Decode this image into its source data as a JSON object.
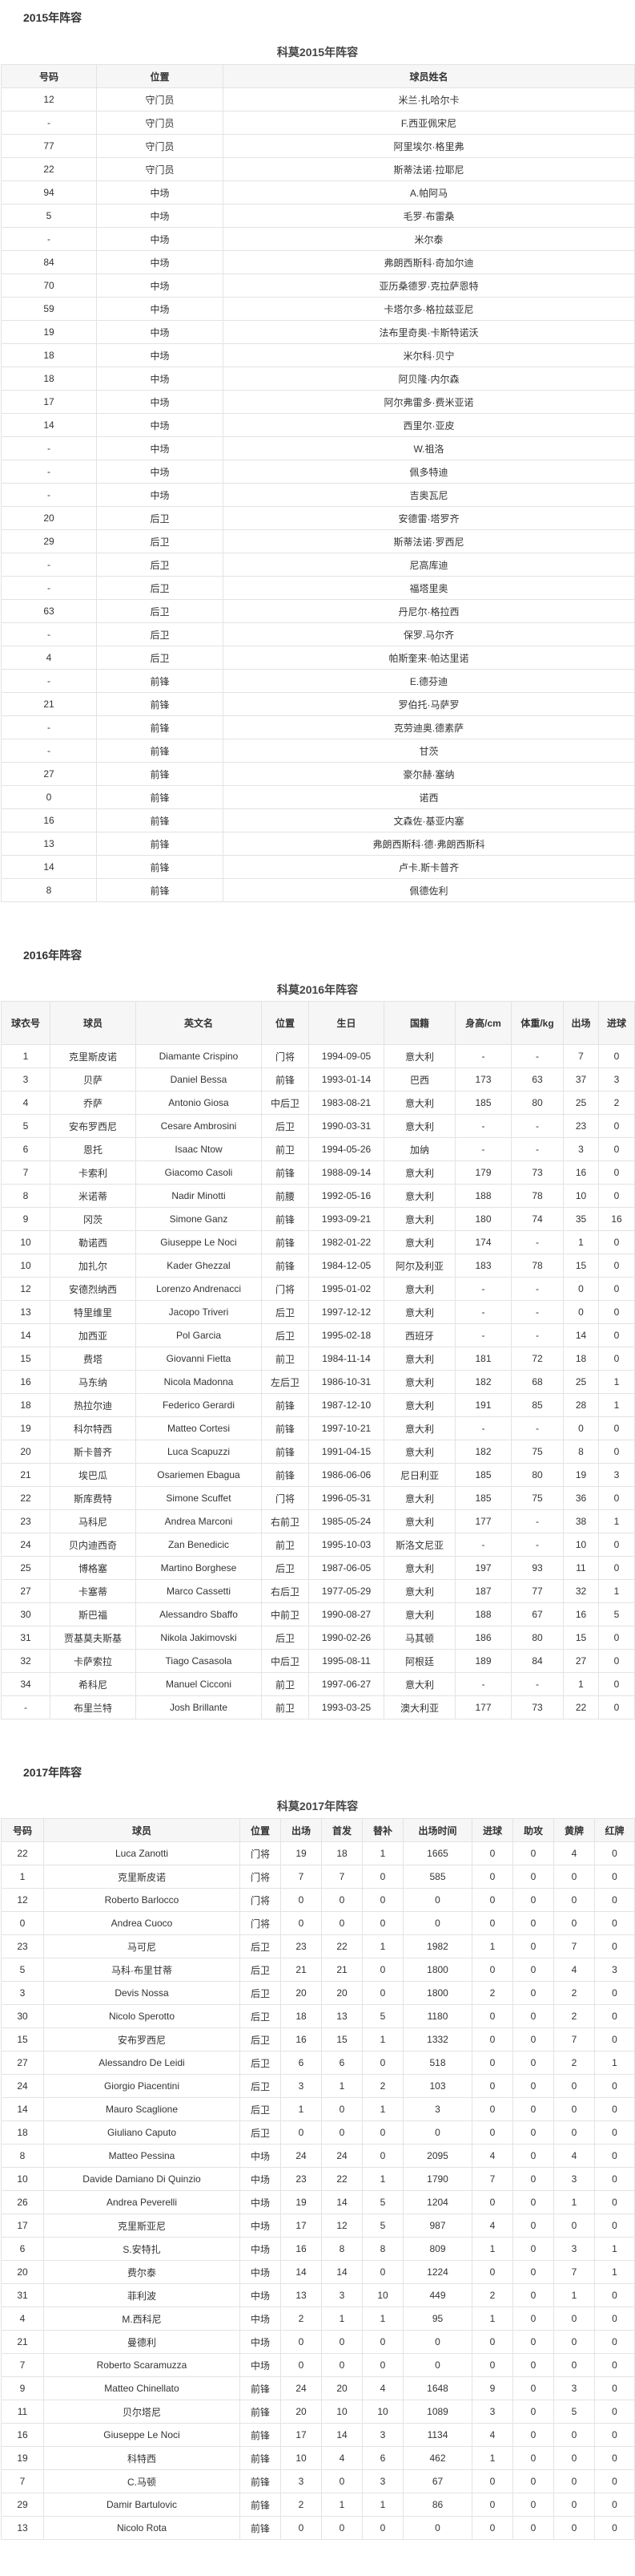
{
  "s2015": {
    "heading": "2015年阵容",
    "caption": "科莫2015年阵容",
    "columns": [
      "号码",
      "位置",
      "球员姓名"
    ],
    "rows": [
      [
        "12",
        "守门员",
        "米兰·扎哈尔卡"
      ],
      [
        "-",
        "守门员",
        "F.西亚佩宋尼"
      ],
      [
        "77",
        "守门员",
        "阿里埃尔·格里弗"
      ],
      [
        "22",
        "守门员",
        "斯蒂法诺·拉耶尼"
      ],
      [
        "94",
        "中场",
        "A.帕阿马"
      ],
      [
        "5",
        "中场",
        "毛罗·布雷桑"
      ],
      [
        "-",
        "中场",
        "米尔泰"
      ],
      [
        "84",
        "中场",
        "弗朗西斯科·奇加尔迪"
      ],
      [
        "70",
        "中场",
        "亚历桑德罗·克拉萨恩特"
      ],
      [
        "59",
        "中场",
        "卡塔尔多·格拉兹亚尼"
      ],
      [
        "19",
        "中场",
        "法布里奇奥·卡斯特诺沃"
      ],
      [
        "18",
        "中场",
        "米尔科·贝宁"
      ],
      [
        "18",
        "中场",
        "阿贝隆·内尔森"
      ],
      [
        "17",
        "中场",
        "阿尔弗雷多·费米亚诺"
      ],
      [
        "14",
        "中场",
        "西里尔·亚皮"
      ],
      [
        "-",
        "中场",
        "W.祖洛"
      ],
      [
        "-",
        "中场",
        "佩多特迪"
      ],
      [
        "-",
        "中场",
        "吉奥瓦尼"
      ],
      [
        "20",
        "后卫",
        "安德雷·塔罗齐"
      ],
      [
        "29",
        "后卫",
        "斯蒂法诺·罗西尼"
      ],
      [
        "-",
        "后卫",
        "尼高库迪"
      ],
      [
        "-",
        "后卫",
        "福塔里奥"
      ],
      [
        "63",
        "后卫",
        "丹尼尔·格拉西"
      ],
      [
        "-",
        "后卫",
        "保罗.马尔齐"
      ],
      [
        "4",
        "后卫",
        "帕斯奎来·帕达里诺"
      ],
      [
        "-",
        "前锋",
        "E.德芬迪"
      ],
      [
        "21",
        "前锋",
        "罗伯托·马萨罗"
      ],
      [
        "-",
        "前锋",
        "克劳迪奥.德素萨"
      ],
      [
        "-",
        "前锋",
        "甘茨"
      ],
      [
        "27",
        "前锋",
        "豪尔赫·塞纳"
      ],
      [
        "0",
        "前锋",
        "诺西"
      ],
      [
        "16",
        "前锋",
        "文森佐·基亚内塞"
      ],
      [
        "13",
        "前锋",
        "弗朗西斯科·德·弗朗西斯科"
      ],
      [
        "14",
        "前锋",
        "卢卡.斯卡普齐"
      ],
      [
        "8",
        "前锋",
        "佩德佐利"
      ]
    ]
  },
  "s2016": {
    "heading": "2016年阵容",
    "caption": "科莫2016年阵容",
    "columns": [
      "球衣号",
      "球员",
      "英文名",
      "位置",
      "生日",
      "国籍",
      "身高/cm",
      "体重/kg",
      "出场",
      "进球"
    ],
    "rows": [
      [
        "1",
        "克里斯皮诺",
        "Diamante Crispino",
        "门将",
        "1994-09-05",
        "意大利",
        "-",
        "-",
        "7",
        "0"
      ],
      [
        "3",
        "贝萨",
        "Daniel Bessa",
        "前锋",
        "1993-01-14",
        "巴西",
        "173",
        "63",
        "37",
        "3"
      ],
      [
        "4",
        "乔萨",
        "Antonio Giosa",
        "中后卫",
        "1983-08-21",
        "意大利",
        "185",
        "80",
        "25",
        "2"
      ],
      [
        "5",
        "安布罗西尼",
        "Cesare Ambrosini",
        "后卫",
        "1990-03-31",
        "意大利",
        "-",
        "-",
        "23",
        "0"
      ],
      [
        "6",
        "恩托",
        "Isaac Ntow",
        "前卫",
        "1994-05-26",
        "加纳",
        "-",
        "-",
        "3",
        "0"
      ],
      [
        "7",
        "卡索利",
        "Giacomo Casoli",
        "前锋",
        "1988-09-14",
        "意大利",
        "179",
        "73",
        "16",
        "0"
      ],
      [
        "8",
        "米诺蒂",
        "Nadir Minotti",
        "前腰",
        "1992-05-16",
        "意大利",
        "188",
        "78",
        "10",
        "0"
      ],
      [
        "9",
        "冈茨",
        "Simone Ganz",
        "前锋",
        "1993-09-21",
        "意大利",
        "180",
        "74",
        "35",
        "16"
      ],
      [
        "10",
        "勒诺西",
        "Giuseppe Le Noci",
        "前锋",
        "1982-01-22",
        "意大利",
        "174",
        "-",
        "1",
        "0"
      ],
      [
        "10",
        "加扎尔",
        "Kader Ghezzal",
        "前锋",
        "1984-12-05",
        "阿尔及利亚",
        "183",
        "78",
        "15",
        "0"
      ],
      [
        "12",
        "安德烈纳西",
        "Lorenzo Andrenacci",
        "门将",
        "1995-01-02",
        "意大利",
        "-",
        "-",
        "0",
        "0"
      ],
      [
        "13",
        "特里维里",
        "Jacopo Triveri",
        "后卫",
        "1997-12-12",
        "意大利",
        "-",
        "-",
        "0",
        "0"
      ],
      [
        "14",
        "加西亚",
        "Pol Garcia",
        "后卫",
        "1995-02-18",
        "西班牙",
        "-",
        "-",
        "14",
        "0"
      ],
      [
        "15",
        "费塔",
        "Giovanni Fietta",
        "前卫",
        "1984-11-14",
        "意大利",
        "181",
        "72",
        "18",
        "0"
      ],
      [
        "16",
        "马东纳",
        "Nicola Madonna",
        "左后卫",
        "1986-10-31",
        "意大利",
        "182",
        "68",
        "25",
        "1"
      ],
      [
        "18",
        "热拉尔迪",
        "Federico Gerardi",
        "前锋",
        "1987-12-10",
        "意大利",
        "191",
        "85",
        "28",
        "1"
      ],
      [
        "19",
        "科尔特西",
        "Matteo Cortesi",
        "前锋",
        "1997-10-21",
        "意大利",
        "-",
        "-",
        "0",
        "0"
      ],
      [
        "20",
        "斯卡普齐",
        "Luca Scapuzzi",
        "前锋",
        "1991-04-15",
        "意大利",
        "182",
        "75",
        "8",
        "0"
      ],
      [
        "21",
        "埃巴瓜",
        "Osariemen Ebagua",
        "前锋",
        "1986-06-06",
        "尼日利亚",
        "185",
        "80",
        "19",
        "3"
      ],
      [
        "22",
        "斯库费特",
        "Simone Scuffet",
        "门将",
        "1996-05-31",
        "意大利",
        "185",
        "75",
        "36",
        "0"
      ],
      [
        "23",
        "马科尼",
        "Andrea Marconi",
        "右前卫",
        "1985-05-24",
        "意大利",
        "177",
        "-",
        "38",
        "1"
      ],
      [
        "24",
        "贝内迪西奇",
        "Zan Benedicic",
        "前卫",
        "1995-10-03",
        "斯洛文尼亚",
        "-",
        "-",
        "10",
        "0"
      ],
      [
        "25",
        "博格塞",
        "Martino Borghese",
        "后卫",
        "1987-06-05",
        "意大利",
        "197",
        "93",
        "11",
        "0"
      ],
      [
        "27",
        "卡塞蒂",
        "Marco Cassetti",
        "右后卫",
        "1977-05-29",
        "意大利",
        "187",
        "77",
        "32",
        "1"
      ],
      [
        "30",
        "斯巴福",
        "Alessandro Sbaffo",
        "中前卫",
        "1990-08-27",
        "意大利",
        "188",
        "67",
        "16",
        "5"
      ],
      [
        "31",
        "贾基莫夫斯基",
        "Nikola Jakimovski",
        "后卫",
        "1990-02-26",
        "马其顿",
        "186",
        "80",
        "15",
        "0"
      ],
      [
        "32",
        "卡萨索拉",
        "Tiago Casasola",
        "中后卫",
        "1995-08-11",
        "阿根廷",
        "189",
        "84",
        "27",
        "0"
      ],
      [
        "34",
        "希科尼",
        "Manuel Cicconi",
        "前卫",
        "1997-06-27",
        "意大利",
        "-",
        "-",
        "1",
        "0"
      ],
      [
        "-",
        "布里兰特",
        "Josh Brillante",
        "前卫",
        "1993-03-25",
        "澳大利亚",
        "177",
        "73",
        "22",
        "0"
      ]
    ]
  },
  "s2017": {
    "heading": "2017年阵容",
    "caption": "科莫2017年阵容",
    "columns": [
      "号码",
      "球员",
      "位置",
      "出场",
      "首发",
      "替补",
      "出场时间",
      "进球",
      "助攻",
      "黄牌",
      "红牌"
    ],
    "rows": [
      [
        "22",
        "Luca Zanotti",
        "门将",
        "19",
        "18",
        "1",
        "1665",
        "0",
        "0",
        "4",
        "0"
      ],
      [
        "1",
        "克里斯皮诺",
        "门将",
        "7",
        "7",
        "0",
        "585",
        "0",
        "0",
        "0",
        "0"
      ],
      [
        "12",
        "Roberto Barlocco",
        "门将",
        "0",
        "0",
        "0",
        "0",
        "0",
        "0",
        "0",
        "0"
      ],
      [
        "0",
        "Andrea Cuoco",
        "门将",
        "0",
        "0",
        "0",
        "0",
        "0",
        "0",
        "0",
        "0"
      ],
      [
        "23",
        "马可尼",
        "后卫",
        "23",
        "22",
        "1",
        "1982",
        "1",
        "0",
        "7",
        "0"
      ],
      [
        "5",
        "马科·布里甘蒂",
        "后卫",
        "21",
        "21",
        "0",
        "1800",
        "0",
        "0",
        "4",
        "3"
      ],
      [
        "3",
        "Devis Nossa",
        "后卫",
        "20",
        "20",
        "0",
        "1800",
        "2",
        "0",
        "2",
        "0"
      ],
      [
        "30",
        "Nicolo Sperotto",
        "后卫",
        "18",
        "13",
        "5",
        "1180",
        "0",
        "0",
        "2",
        "0"
      ],
      [
        "15",
        "安布罗西尼",
        "后卫",
        "16",
        "15",
        "1",
        "1332",
        "0",
        "0",
        "7",
        "0"
      ],
      [
        "27",
        "Alessandro De Leidi",
        "后卫",
        "6",
        "6",
        "0",
        "518",
        "0",
        "0",
        "2",
        "1"
      ],
      [
        "24",
        "Giorgio Piacentini",
        "后卫",
        "3",
        "1",
        "2",
        "103",
        "0",
        "0",
        "0",
        "0"
      ],
      [
        "14",
        "Mauro Scaglione",
        "后卫",
        "1",
        "0",
        "1",
        "3",
        "0",
        "0",
        "0",
        "0"
      ],
      [
        "18",
        "Giuliano Caputo",
        "后卫",
        "0",
        "0",
        "0",
        "0",
        "0",
        "0",
        "0",
        "0"
      ],
      [
        "8",
        "Matteo Pessina",
        "中场",
        "24",
        "24",
        "0",
        "2095",
        "4",
        "0",
        "4",
        "0"
      ],
      [
        "10",
        "Davide Damiano Di Quinzio",
        "中场",
        "23",
        "22",
        "1",
        "1790",
        "7",
        "0",
        "3",
        "0"
      ],
      [
        "26",
        "Andrea Peverelli",
        "中场",
        "19",
        "14",
        "5",
        "1204",
        "0",
        "0",
        "1",
        "0"
      ],
      [
        "17",
        "克里斯亚尼",
        "中场",
        "17",
        "12",
        "5",
        "987",
        "4",
        "0",
        "0",
        "0"
      ],
      [
        "6",
        "S.安特扎",
        "中场",
        "16",
        "8",
        "8",
        "809",
        "1",
        "0",
        "3",
        "1"
      ],
      [
        "20",
        "费尔泰",
        "中场",
        "14",
        "14",
        "0",
        "1224",
        "0",
        "0",
        "7",
        "1"
      ],
      [
        "31",
        "菲利波",
        "中场",
        "13",
        "3",
        "10",
        "449",
        "2",
        "0",
        "1",
        "0"
      ],
      [
        "4",
        "M.西科尼",
        "中场",
        "2",
        "1",
        "1",
        "95",
        "1",
        "0",
        "0",
        "0"
      ],
      [
        "21",
        "曼德利",
        "中场",
        "0",
        "0",
        "0",
        "0",
        "0",
        "0",
        "0",
        "0"
      ],
      [
        "7",
        "Roberto Scaramuzza",
        "中场",
        "0",
        "0",
        "0",
        "0",
        "0",
        "0",
        "0",
        "0"
      ],
      [
        "9",
        "Matteo Chinellato",
        "前锋",
        "24",
        "20",
        "4",
        "1648",
        "9",
        "0",
        "3",
        "0"
      ],
      [
        "11",
        "贝尔塔尼",
        "前锋",
        "20",
        "10",
        "10",
        "1089",
        "3",
        "0",
        "5",
        "0"
      ],
      [
        "16",
        "Giuseppe Le Noci",
        "前锋",
        "17",
        "14",
        "3",
        "1134",
        "4",
        "0",
        "0",
        "0"
      ],
      [
        "19",
        "科特西",
        "前锋",
        "10",
        "4",
        "6",
        "462",
        "1",
        "0",
        "0",
        "0"
      ],
      [
        "7",
        "C.马顿",
        "前锋",
        "3",
        "0",
        "3",
        "67",
        "0",
        "0",
        "0",
        "0"
      ],
      [
        "29",
        "Damir Bartulovic",
        "前锋",
        "2",
        "1",
        "1",
        "86",
        "0",
        "0",
        "0",
        "0"
      ],
      [
        "13",
        "Nicolo Rota",
        "前锋",
        "0",
        "0",
        "0",
        "0",
        "0",
        "0",
        "0",
        "0"
      ]
    ]
  }
}
